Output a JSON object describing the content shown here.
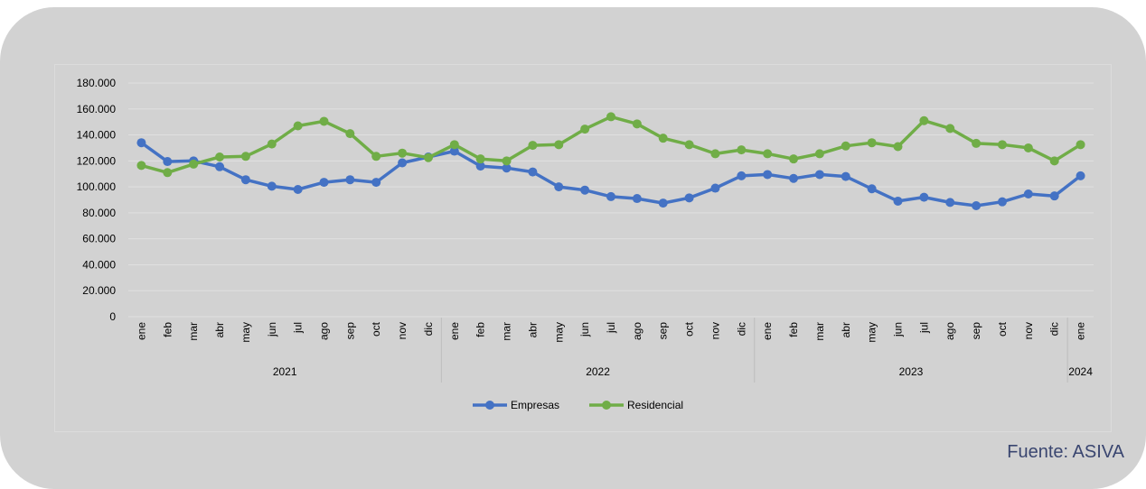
{
  "source_label": "Fuente: ASIVA",
  "colors": {
    "empresas": "#4472c4",
    "residencial": "#70ad47",
    "grid": "#e0e0e0"
  },
  "chart_data": {
    "type": "line",
    "title": "",
    "xlabel": "",
    "ylabel": "",
    "ylim": [
      0,
      180000
    ],
    "yticks": [
      "0",
      "20.000",
      "40.000",
      "60.000",
      "80.000",
      "100.000",
      "120.000",
      "140.000",
      "160.000",
      "180.000"
    ],
    "categories": [
      "ene",
      "feb",
      "mar",
      "abr",
      "may",
      "jun",
      "jul",
      "ago",
      "sep",
      "oct",
      "nov",
      "dic",
      "ene",
      "feb",
      "mar",
      "abr",
      "may",
      "jun",
      "jul",
      "ago",
      "sep",
      "oct",
      "nov",
      "dic",
      "ene",
      "feb",
      "mar",
      "abr",
      "may",
      "jun",
      "jul",
      "ago",
      "sep",
      "oct",
      "nov",
      "dic",
      "ene"
    ],
    "year_groups": [
      {
        "label": "2021",
        "count": 12
      },
      {
        "label": "2022",
        "count": 12
      },
      {
        "label": "2023",
        "count": 12
      },
      {
        "label": "2024",
        "count": 1
      }
    ],
    "series": [
      {
        "name": "Empresas",
        "values": [
          134000,
          119500,
          120000,
          115500,
          105500,
          100500,
          98000,
          103500,
          105500,
          103500,
          118500,
          123000,
          127500,
          116000,
          114500,
          111500,
          100000,
          97500,
          92500,
          91000,
          87500,
          91500,
          99000,
          108500,
          109500,
          106500,
          109500,
          108000,
          98500,
          89000,
          92000,
          88000,
          85500,
          88500,
          94500,
          93000,
          108500
        ]
      },
      {
        "name": "Residencial",
        "values": [
          116500,
          111000,
          117500,
          123000,
          123500,
          133000,
          147000,
          150500,
          141000,
          123500,
          126000,
          122500,
          132500,
          121500,
          120000,
          132000,
          132500,
          144500,
          154000,
          148500,
          137500,
          132500,
          125500,
          128500,
          125500,
          121500,
          125500,
          131500,
          134000,
          131000,
          151000,
          145000,
          133500,
          132500,
          130000,
          120000,
          132500
        ]
      }
    ],
    "legend_position": "bottom",
    "grid": true
  }
}
